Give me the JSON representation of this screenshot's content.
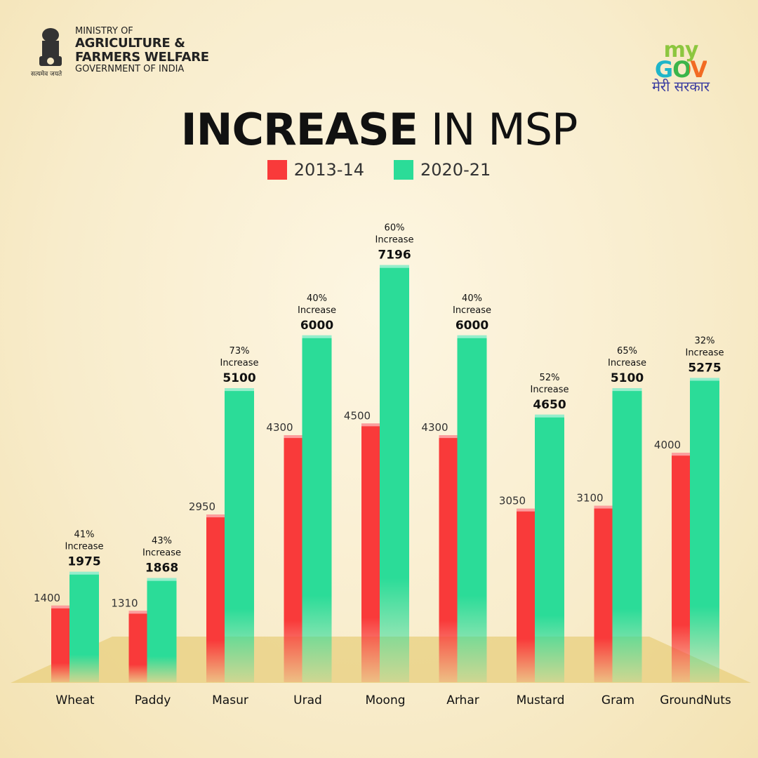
{
  "header": {
    "ministry_line1": "MINISTRY OF",
    "ministry_line2": "AGRICULTURE &",
    "ministry_line3": "FARMERS WELFARE",
    "ministry_line4": "GOVERNMENT OF INDIA",
    "emblem_motto": "सत्यमेव जयते",
    "logo_my": "my",
    "logo_gov": "GOV",
    "logo_tagline": "मेरी सरकार"
  },
  "colors": {
    "series_2013": "#f93a3a",
    "series_2020": "#2bdc98",
    "floor": "#e8cf7e"
  },
  "chart_data": {
    "type": "bar",
    "title_bold": "INCREASE",
    "title_light": "IN MSP",
    "categories": [
      "Wheat",
      "Paddy",
      "Masur",
      "Urad",
      "Moong",
      "Arhar",
      "Mustard",
      "Gram",
      "GroundNuts"
    ],
    "series": [
      {
        "name": "2013-14",
        "values": [
          1400,
          1310,
          2950,
          4300,
          4500,
          4300,
          3050,
          3100,
          4000
        ]
      },
      {
        "name": "2020-21",
        "values": [
          1975,
          1868,
          5100,
          6000,
          7196,
          6000,
          4650,
          5100,
          5275
        ]
      }
    ],
    "annotations": [
      "41%",
      "43%",
      "73%",
      "40%",
      "60%",
      "40%",
      "52%",
      "65%",
      "32%"
    ],
    "annotation_suffix": "Increase",
    "legend": "top-center",
    "grid": false
  }
}
